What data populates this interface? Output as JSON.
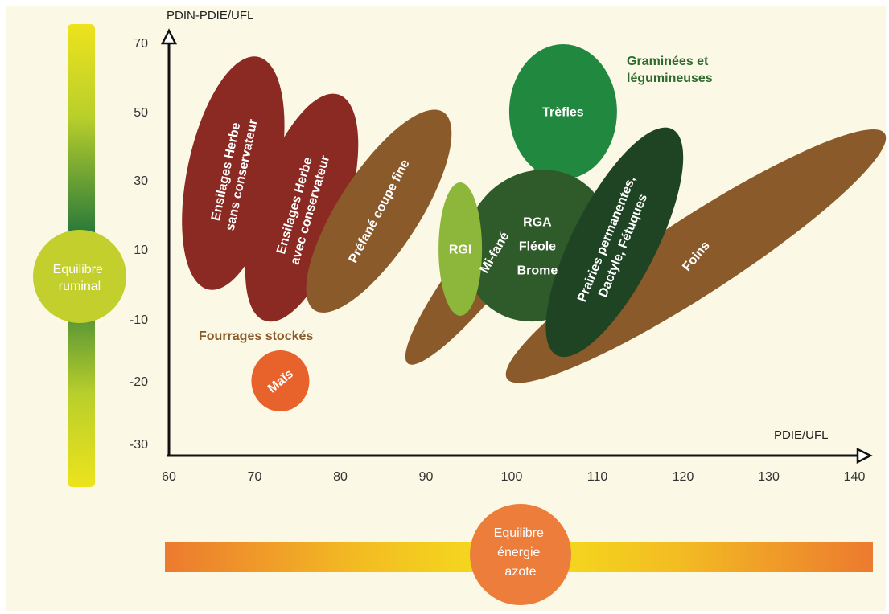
{
  "colors": {
    "background": "#fbf9e6",
    "dark_red": "#8b2a22",
    "brown": "#8a5a2b",
    "green_mid": "#21893f",
    "green_dark": "#2f5a2a",
    "green_darker": "#1f4424",
    "green_light": "#8db73b",
    "orange": "#e8622c",
    "stocked_label": "#8a5a2b",
    "graminees_label": "#2e6b2e"
  },
  "chart_data": {
    "type": "scatter",
    "title": "",
    "xlabel": "PDIE/UFL",
    "ylabel": "PDIN-PDIE/UFL",
    "xlim": [
      60,
      140
    ],
    "ylim": [
      -30,
      70
    ],
    "x_ticks": [
      60,
      70,
      80,
      90,
      100,
      110,
      120,
      130,
      140
    ],
    "y_ticks": [
      70,
      50,
      30,
      10,
      -10,
      -20,
      -30
    ],
    "grid": false,
    "regions": [
      {
        "label": [
          "Ensilages Herbe",
          "sans conservateur"
        ],
        "center": [
          67.5,
          32
        ],
        "color": "dark_red"
      },
      {
        "label": [
          "Ensilages Herbe",
          "avec conservateur"
        ],
        "center": [
          75.5,
          22
        ],
        "color": "dark_red"
      },
      {
        "label": [
          "Préfané coupe fine"
        ],
        "center": [
          84.5,
          21
        ],
        "color": "brown"
      },
      {
        "label": [
          "Mi-fané"
        ],
        "center": [
          98,
          9
        ],
        "color": "brown"
      },
      {
        "label": [
          "Trèfles"
        ],
        "center": [
          106,
          50
        ],
        "color": "green_mid"
      },
      {
        "label": [
          "RGA",
          "Fléole",
          "Brome"
        ],
        "center": [
          103,
          11
        ],
        "color": "green_dark"
      },
      {
        "label": [
          "RGI"
        ],
        "center": [
          94,
          10
        ],
        "color": "green_light"
      },
      {
        "label": [
          "Prairies permanentes,",
          "Dactyle, Fétuques"
        ],
        "center": [
          112,
          12
        ],
        "color": "green_darker"
      },
      {
        "label": [
          "Foins"
        ],
        "center": [
          121.5,
          8
        ],
        "color": "brown"
      },
      {
        "label": [
          "Maïs"
        ],
        "center": [
          73,
          -20
        ],
        "color": "orange"
      }
    ],
    "annotations": [
      {
        "text": "Fourrages stockés",
        "color": "stocked_label"
      },
      {
        "text": [
          "Graminées et",
          "légumineuses"
        ],
        "color": "graminees_label"
      }
    ]
  },
  "side_indicators": {
    "vertical": {
      "text": [
        "Equilibre",
        "ruminal"
      ]
    },
    "horizontal": {
      "text": [
        "Equilibre",
        "énergie",
        "azote"
      ]
    }
  }
}
